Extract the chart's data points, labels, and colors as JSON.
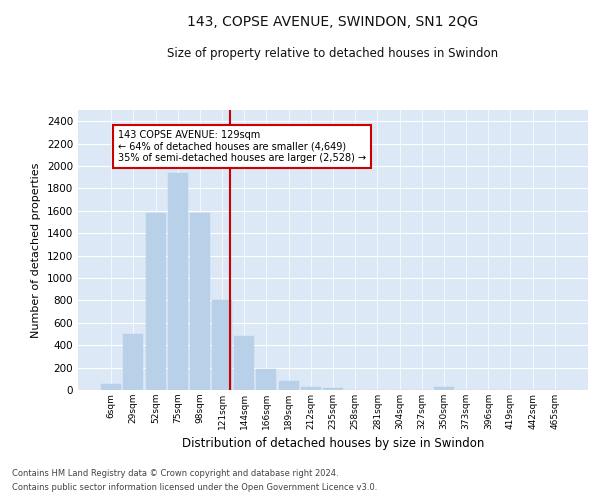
{
  "title": "143, COPSE AVENUE, SWINDON, SN1 2QG",
  "subtitle": "Size of property relative to detached houses in Swindon",
  "xlabel": "Distribution of detached houses by size in Swindon",
  "ylabel": "Number of detached properties",
  "bar_color": "#b8d0e8",
  "bar_edge_color": "#b8d0e8",
  "background_color": "#dce8f5",
  "grid_color": "#ffffff",
  "vline_color": "#cc0000",
  "annotation_text_line1": "143 COPSE AVENUE: 129sqm",
  "annotation_text_line2": "← 64% of detached houses are smaller (4,649)",
  "annotation_text_line3": "35% of semi-detached houses are larger (2,528) →",
  "annotation_box_color": "#ffffff",
  "annotation_box_edge": "#cc0000",
  "footer_line1": "Contains HM Land Registry data © Crown copyright and database right 2024.",
  "footer_line2": "Contains public sector information licensed under the Open Government Licence v3.0.",
  "categories": [
    "6sqm",
    "29sqm",
    "52sqm",
    "75sqm",
    "98sqm",
    "121sqm",
    "144sqm",
    "166sqm",
    "189sqm",
    "212sqm",
    "235sqm",
    "258sqm",
    "281sqm",
    "304sqm",
    "327sqm",
    "350sqm",
    "373sqm",
    "396sqm",
    "419sqm",
    "442sqm",
    "465sqm"
  ],
  "values": [
    50,
    500,
    1580,
    1940,
    1580,
    800,
    480,
    190,
    80,
    30,
    20,
    0,
    0,
    0,
    0,
    25,
    0,
    0,
    0,
    0,
    0
  ],
  "ylim": [
    0,
    2500
  ],
  "yticks": [
    0,
    200,
    400,
    600,
    800,
    1000,
    1200,
    1400,
    1600,
    1800,
    2000,
    2200,
    2400
  ],
  "fig_width": 6.0,
  "fig_height": 5.0,
  "dpi": 100
}
